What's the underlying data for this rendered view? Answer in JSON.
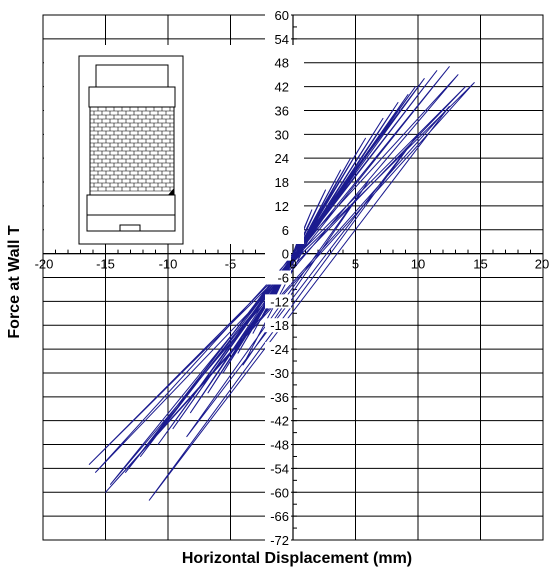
{
  "chart_data": {
    "type": "line",
    "xlabel": "Horizontal Displacement (mm)",
    "ylabel": "Force at Wall T",
    "xlim": [
      -20,
      20
    ],
    "ylim": [
      -72,
      60
    ],
    "x_ticks": [
      -20,
      -15,
      -10,
      -5,
      0,
      5,
      10,
      15,
      20
    ],
    "y_ticks": [
      60,
      54,
      48,
      42,
      36,
      30,
      24,
      18,
      12,
      6,
      0,
      -6,
      -12,
      -18,
      -24,
      -30,
      -36,
      -42,
      -48,
      -54,
      -60,
      -66,
      -72
    ],
    "x_tick_labels": [
      "-20",
      "-15",
      "-10",
      "-5",
      "0",
      "5",
      "10",
      "15",
      "20"
    ],
    "y_tick_labels": [
      "60",
      "54",
      "48",
      "42",
      "36",
      "30",
      "24",
      "18",
      "12",
      "6",
      "0",
      "-6",
      "-12",
      "-18",
      "-24",
      "-30",
      "-36",
      "-42",
      "-48",
      "-54",
      "-60",
      "-66",
      "-72"
    ],
    "grid": true,
    "series_color": "#1b1b8f",
    "series": [
      {
        "x": [
          0,
          0.7,
          -0.8,
          1.5,
          -1.6,
          2.6,
          -2.4,
          3.8,
          -3.2,
          4.6,
          -4.4,
          5.8,
          -5.6,
          7.2,
          -6.8,
          8.4,
          -8.2,
          9.2,
          -9.6,
          9.8,
          -10.8,
          10.5,
          -12.2,
          11.5,
          -13.4,
          12.5,
          -14.6,
          13.2,
          -15.8,
          13.8,
          -16.3,
          14.5,
          -15.0,
          12.5,
          -11.5,
          10.0,
          -8.5,
          6.0,
          -4.0,
          2.0,
          0
        ],
        "y": [
          0,
          6,
          -7,
          11,
          -12,
          16,
          -16,
          21,
          -20,
          24,
          -25,
          29,
          -30,
          34,
          -35,
          38,
          -40,
          40,
          -44,
          42,
          -48,
          44,
          -51,
          46,
          -55,
          47,
          -58,
          45,
          -55,
          42,
          -53,
          43,
          -60,
          37,
          -62,
          30,
          -46,
          18,
          -28,
          8,
          0
        ]
      }
    ],
    "inset": {
      "description": "wall",
      "colors": {
        "stroke": "#000000",
        "fill": "#ffffff"
      }
    }
  }
}
